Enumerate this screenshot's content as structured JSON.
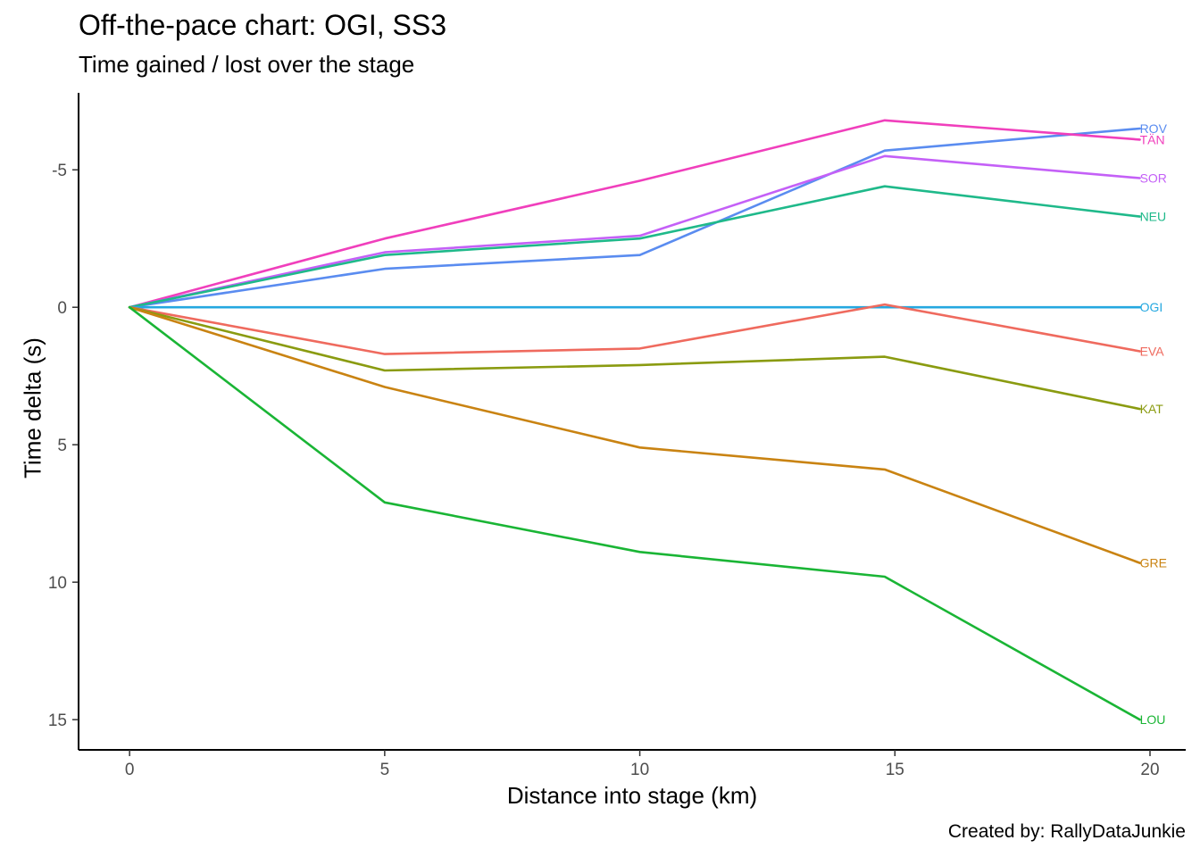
{
  "chart_data": {
    "type": "line",
    "title": "Off-the-pace chart: OGI, SS3",
    "subtitle": "Time gained / lost over the stage",
    "xlabel": "Distance into stage (km)",
    "ylabel": "Time delta (s)",
    "caption": "Created by: RallyDataJunkie",
    "xlim": [
      -1,
      20.7
    ],
    "ylim": [
      -7.8,
      16.1
    ],
    "y_reversed": true,
    "grid": false,
    "legend": "none (labels at line ends)",
    "x_ticks": [
      0,
      5,
      10,
      15,
      20
    ],
    "x_tick_labels": [
      "0",
      "5",
      "10",
      "15",
      "20"
    ],
    "y_ticks": [
      -5,
      0,
      5,
      10,
      15
    ],
    "y_tick_labels": [
      "-5",
      "0",
      "5",
      "10",
      "15"
    ],
    "x": [
      0,
      5.0,
      10.0,
      14.8,
      19.8
    ],
    "series": [
      {
        "name": "ROV",
        "color": "#5a8cf0",
        "values": [
          0,
          -1.4,
          -1.9,
          -5.7,
          -6.5
        ]
      },
      {
        "name": "TÄN",
        "color": "#f03fbc",
        "values": [
          0,
          -2.5,
          -4.6,
          -6.8,
          -6.1
        ]
      },
      {
        "name": "SOR",
        "color": "#c460f7",
        "values": [
          0,
          -2.0,
          -2.6,
          -5.5,
          -4.7
        ]
      },
      {
        "name": "NEU",
        "color": "#1fb98a",
        "values": [
          0,
          -1.9,
          -2.5,
          -4.4,
          -3.3
        ]
      },
      {
        "name": "OGI",
        "color": "#25a8e0",
        "values": [
          0,
          0,
          0,
          0,
          0
        ]
      },
      {
        "name": "EVA",
        "color": "#ef6a5e",
        "values": [
          0,
          1.7,
          1.5,
          -0.1,
          1.6
        ]
      },
      {
        "name": "KAT",
        "color": "#8a9b10",
        "values": [
          0,
          2.3,
          2.1,
          1.8,
          3.7
        ]
      },
      {
        "name": "GRE",
        "color": "#c98312",
        "values": [
          0,
          2.9,
          5.1,
          5.9,
          9.3
        ]
      },
      {
        "name": "LOU",
        "color": "#1ab535",
        "values": [
          0,
          7.1,
          8.9,
          9.8,
          15.0
        ]
      }
    ]
  }
}
